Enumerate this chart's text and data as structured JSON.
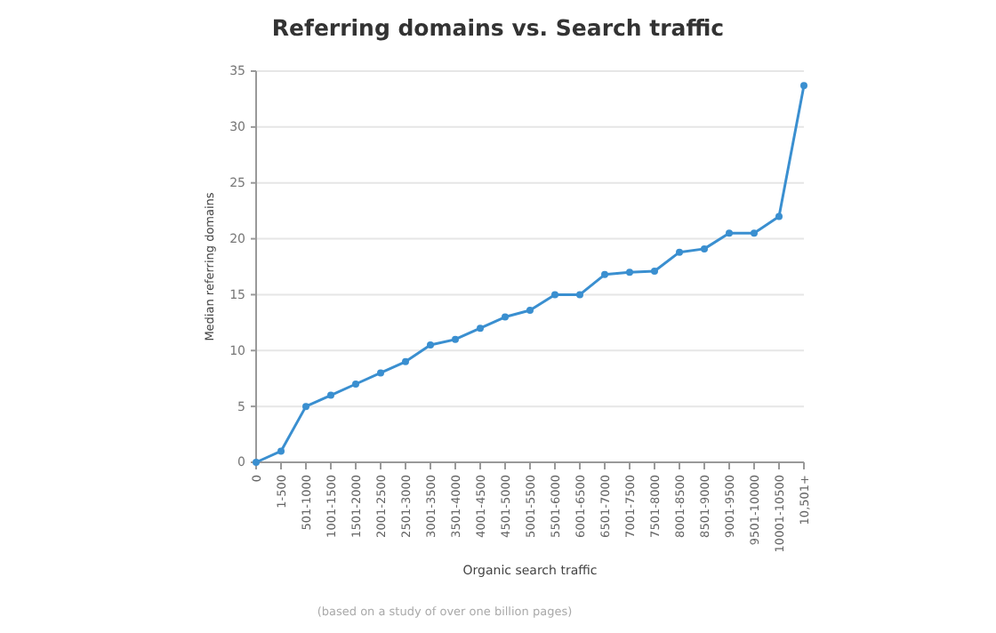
{
  "chart_data": {
    "type": "line",
    "title": "Referring domains vs. Search traffic",
    "xlabel": "Organic search traffic",
    "ylabel": "Median referring domains",
    "categories": [
      "0",
      "1-500",
      "501-1000",
      "1001-1500",
      "1501-2000",
      "2001-2500",
      "2501-3000",
      "3001-3500",
      "3501-4000",
      "4001-4500",
      "4501-5000",
      "5001-5500",
      "5501-6000",
      "6001-6500",
      "6501-7000",
      "7001-7500",
      "7501-8000",
      "8001-8500",
      "8501-9000",
      "9001-9500",
      "9501-10000",
      "10001-10500",
      "10,501+"
    ],
    "series": [
      {
        "color": "#3a8fd0",
        "values": [
          0,
          1,
          5,
          6,
          7,
          8,
          9,
          10.5,
          11,
          12,
          13,
          13.6,
          15,
          15,
          16.8,
          17,
          17.1,
          18.8,
          19.1,
          20.5,
          20.5,
          22,
          33.7
        ]
      }
    ],
    "ylim": [
      0,
      35
    ],
    "yticks": [
      0,
      5,
      10,
      15,
      20,
      25,
      30,
      35
    ],
    "grid": "y",
    "marker": "circle",
    "annotations": [
      "(based on a study of over one billion pages)"
    ]
  }
}
